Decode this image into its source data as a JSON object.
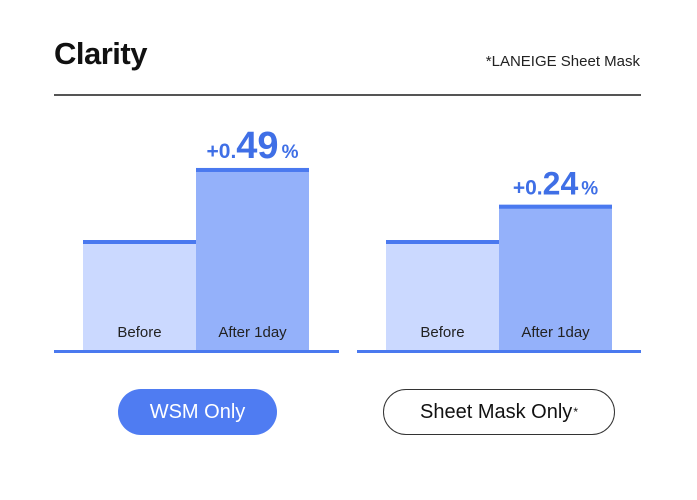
{
  "header": {
    "title": "Clarity",
    "note": "*LANEIGE Sheet Mask"
  },
  "filters": [
    {
      "label": "WSM Only",
      "active": true
    },
    {
      "label": "Sheet Mask Only",
      "sup": "*",
      "active": false
    }
  ],
  "colors": {
    "accent": "#4f7cf2",
    "before_fill": "#cbd9ff",
    "after_fill": "#94b1fa",
    "top_line": "#4a79ef",
    "label": "#3f6fe6"
  },
  "chart_data": [
    {
      "type": "bar",
      "categories": [
        "Before",
        "After 1day"
      ],
      "values": [
        0,
        0.49
      ],
      "annotation": {
        "prefix": "+0.",
        "number": "49",
        "suffix": "%"
      }
    },
    {
      "type": "bar",
      "categories": [
        "Before",
        "After 1day"
      ],
      "values": [
        0,
        0.24
      ],
      "annotation": {
        "prefix": "+0.",
        "number": "24",
        "suffix": "%"
      }
    }
  ]
}
